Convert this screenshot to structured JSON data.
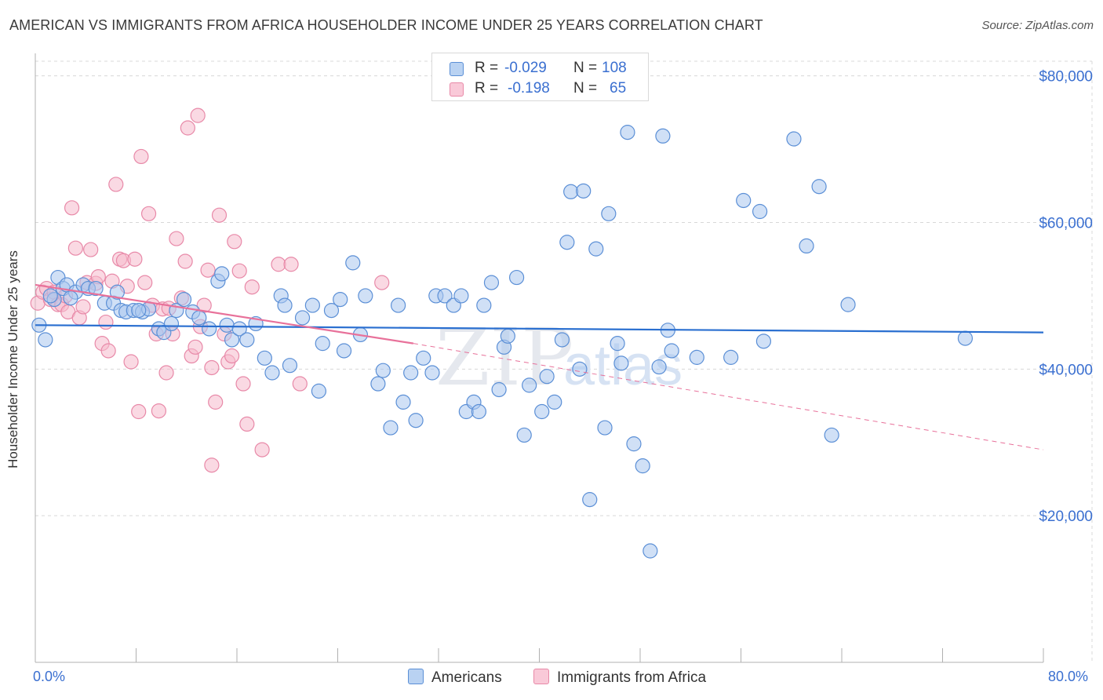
{
  "title": "AMERICAN VS IMMIGRANTS FROM AFRICA HOUSEHOLDER INCOME UNDER 25 YEARS CORRELATION CHART",
  "source": "Source: ZipAtlas.com",
  "legend": {
    "r_label": "R =",
    "n_label": "N =",
    "americans": {
      "r": "-0.029",
      "n": "108"
    },
    "africa": {
      "r": "-0.198",
      "n": "65"
    }
  },
  "colors": {
    "blue_fill": "#a9c6ee",
    "blue_stroke": "#5b8fd6",
    "blue_line": "#2a6fd0",
    "pink_fill": "#f5b9cc",
    "pink_stroke": "#e889a8",
    "pink_line": "#e8719a",
    "axis_text": "#3a6fd0",
    "grid": "#d8d8d8"
  },
  "chart_data": {
    "type": "scatter",
    "xlabel": "",
    "ylabel": "Householder Income Under 25 years",
    "x_tick_labels": [
      "0.0%",
      "80.0%"
    ],
    "y_tick_labels": [
      "$20,000",
      "$40,000",
      "$60,000",
      "$80,000"
    ],
    "y_ticks": [
      20000,
      40000,
      60000,
      80000
    ],
    "xlim": [
      0,
      80
    ],
    "ylim": [
      0,
      82000
    ],
    "grid": true,
    "watermark": "ZIPatlas",
    "series": [
      {
        "name": "Americans",
        "color": "#5b8fd6",
        "trend": {
          "x": [
            0,
            80
          ],
          "y": [
            46000,
            45000
          ],
          "style": "solid"
        },
        "points": [
          [
            0.3,
            46000
          ],
          [
            0.8,
            44000
          ],
          [
            1.5,
            49500
          ],
          [
            1.8,
            52500
          ],
          [
            2.2,
            51000
          ],
          [
            2.5,
            51500
          ],
          [
            3.2,
            50500
          ],
          [
            3.8,
            51500
          ],
          [
            4.2,
            51000
          ],
          [
            4.8,
            51000
          ],
          [
            5.5,
            49000
          ],
          [
            6.2,
            49000
          ],
          [
            6.8,
            48000
          ],
          [
            7.2,
            47800
          ],
          [
            7.8,
            48000
          ],
          [
            8.5,
            47800
          ],
          [
            9.0,
            48200
          ],
          [
            9.8,
            45500
          ],
          [
            10.2,
            45000
          ],
          [
            10.8,
            46200
          ],
          [
            11.2,
            48000
          ],
          [
            11.8,
            49500
          ],
          [
            12.5,
            47800
          ],
          [
            13.0,
            47000
          ],
          [
            13.8,
            45500
          ],
          [
            14.5,
            52000
          ],
          [
            14.8,
            53000
          ],
          [
            15.2,
            46000
          ],
          [
            15.6,
            44000
          ],
          [
            16.2,
            45500
          ],
          [
            16.8,
            44000
          ],
          [
            17.5,
            46200
          ],
          [
            18.2,
            41500
          ],
          [
            18.8,
            39500
          ],
          [
            19.5,
            50000
          ],
          [
            19.8,
            48700
          ],
          [
            20.2,
            40500
          ],
          [
            21.2,
            47000
          ],
          [
            22.0,
            48700
          ],
          [
            22.5,
            37000
          ],
          [
            22.8,
            43500
          ],
          [
            23.5,
            48000
          ],
          [
            24.2,
            49500
          ],
          [
            24.5,
            42500
          ],
          [
            25.2,
            54500
          ],
          [
            25.8,
            44700
          ],
          [
            26.2,
            50000
          ],
          [
            27.2,
            38000
          ],
          [
            27.6,
            39800
          ],
          [
            28.2,
            32000
          ],
          [
            28.8,
            48700
          ],
          [
            29.2,
            35500
          ],
          [
            29.8,
            39500
          ],
          [
            30.2,
            33000
          ],
          [
            30.8,
            41500
          ],
          [
            31.5,
            39500
          ],
          [
            31.8,
            50000
          ],
          [
            32.5,
            50000
          ],
          [
            33.2,
            48700
          ],
          [
            33.8,
            50000
          ],
          [
            34.2,
            34200
          ],
          [
            34.8,
            35500
          ],
          [
            35.2,
            34200
          ],
          [
            35.6,
            48700
          ],
          [
            36.2,
            51800
          ],
          [
            36.8,
            37200
          ],
          [
            37.2,
            43000
          ],
          [
            37.5,
            44500
          ],
          [
            38.2,
            52500
          ],
          [
            38.8,
            31000
          ],
          [
            39.2,
            37800
          ],
          [
            40.2,
            34200
          ],
          [
            40.6,
            39000
          ],
          [
            41.2,
            35500
          ],
          [
            41.8,
            44000
          ],
          [
            42.2,
            57300
          ],
          [
            42.5,
            64200
          ],
          [
            43.2,
            40000
          ],
          [
            43.5,
            64300
          ],
          [
            44.0,
            22200
          ],
          [
            44.5,
            56400
          ],
          [
            45.2,
            32000
          ],
          [
            45.5,
            61200
          ],
          [
            46.2,
            43500
          ],
          [
            46.5,
            40800
          ],
          [
            47.0,
            72300
          ],
          [
            47.5,
            29800
          ],
          [
            48.2,
            26800
          ],
          [
            48.8,
            15200
          ],
          [
            49.5,
            40300
          ],
          [
            49.8,
            71800
          ],
          [
            50.2,
            45300
          ],
          [
            50.5,
            42500
          ],
          [
            52.5,
            41600
          ],
          [
            55.2,
            41600
          ],
          [
            56.2,
            63000
          ],
          [
            57.5,
            61500
          ],
          [
            57.8,
            43800
          ],
          [
            60.2,
            71400
          ],
          [
            61.2,
            56800
          ],
          [
            62.2,
            64900
          ],
          [
            63.2,
            31000
          ],
          [
            64.5,
            48800
          ],
          [
            73.8,
            44200
          ],
          [
            1.2,
            50000
          ],
          [
            2.8,
            49700
          ],
          [
            6.5,
            50500
          ],
          [
            8.2,
            48000
          ]
        ]
      },
      {
        "name": "Immigrants from Africa",
        "color": "#e889a8",
        "trend": {
          "x": [
            0,
            30
          ],
          "y": [
            51500,
            43500
          ],
          "x_dashed_end": 80,
          "y_dashed_end": 29000,
          "style": "solid-then-dashed"
        },
        "points": [
          [
            0.2,
            49000
          ],
          [
            0.6,
            50500
          ],
          [
            0.9,
            51000
          ],
          [
            1.2,
            49500
          ],
          [
            1.5,
            50500
          ],
          [
            1.8,
            48800
          ],
          [
            2.1,
            48800
          ],
          [
            2.4,
            50000
          ],
          [
            2.6,
            47800
          ],
          [
            2.9,
            62000
          ],
          [
            3.2,
            56500
          ],
          [
            3.5,
            47000
          ],
          [
            3.8,
            48500
          ],
          [
            4.1,
            51800
          ],
          [
            4.4,
            56300
          ],
          [
            4.8,
            51700
          ],
          [
            5.0,
            52600
          ],
          [
            5.3,
            43500
          ],
          [
            5.6,
            46400
          ],
          [
            5.8,
            42500
          ],
          [
            6.1,
            52000
          ],
          [
            6.4,
            65200
          ],
          [
            6.7,
            55000
          ],
          [
            7.0,
            54800
          ],
          [
            7.3,
            51300
          ],
          [
            7.6,
            41000
          ],
          [
            7.9,
            55000
          ],
          [
            8.2,
            34200
          ],
          [
            8.4,
            69000
          ],
          [
            8.7,
            51800
          ],
          [
            9.0,
            61200
          ],
          [
            9.3,
            48700
          ],
          [
            9.6,
            44800
          ],
          [
            9.8,
            34300
          ],
          [
            10.1,
            48200
          ],
          [
            10.4,
            39500
          ],
          [
            10.6,
            48300
          ],
          [
            10.9,
            44800
          ],
          [
            11.2,
            57800
          ],
          [
            11.6,
            49700
          ],
          [
            11.9,
            54700
          ],
          [
            12.1,
            72900
          ],
          [
            12.4,
            41800
          ],
          [
            12.7,
            43000
          ],
          [
            12.9,
            74600
          ],
          [
            13.1,
            45800
          ],
          [
            13.4,
            48700
          ],
          [
            13.7,
            53500
          ],
          [
            14.0,
            40200
          ],
          [
            14.3,
            35500
          ],
          [
            14.6,
            61000
          ],
          [
            15.0,
            44800
          ],
          [
            15.3,
            41000
          ],
          [
            15.6,
            41800
          ],
          [
            15.8,
            57400
          ],
          [
            16.2,
            53400
          ],
          [
            16.5,
            38000
          ],
          [
            16.8,
            32500
          ],
          [
            17.2,
            51200
          ],
          [
            18.0,
            29000
          ],
          [
            19.3,
            54300
          ],
          [
            20.3,
            54300
          ],
          [
            21.0,
            38000
          ],
          [
            27.5,
            51800
          ],
          [
            14.0,
            26900
          ]
        ]
      }
    ]
  },
  "bottom_legend": {
    "americans": "Americans",
    "africa": "Immigrants from Africa"
  }
}
